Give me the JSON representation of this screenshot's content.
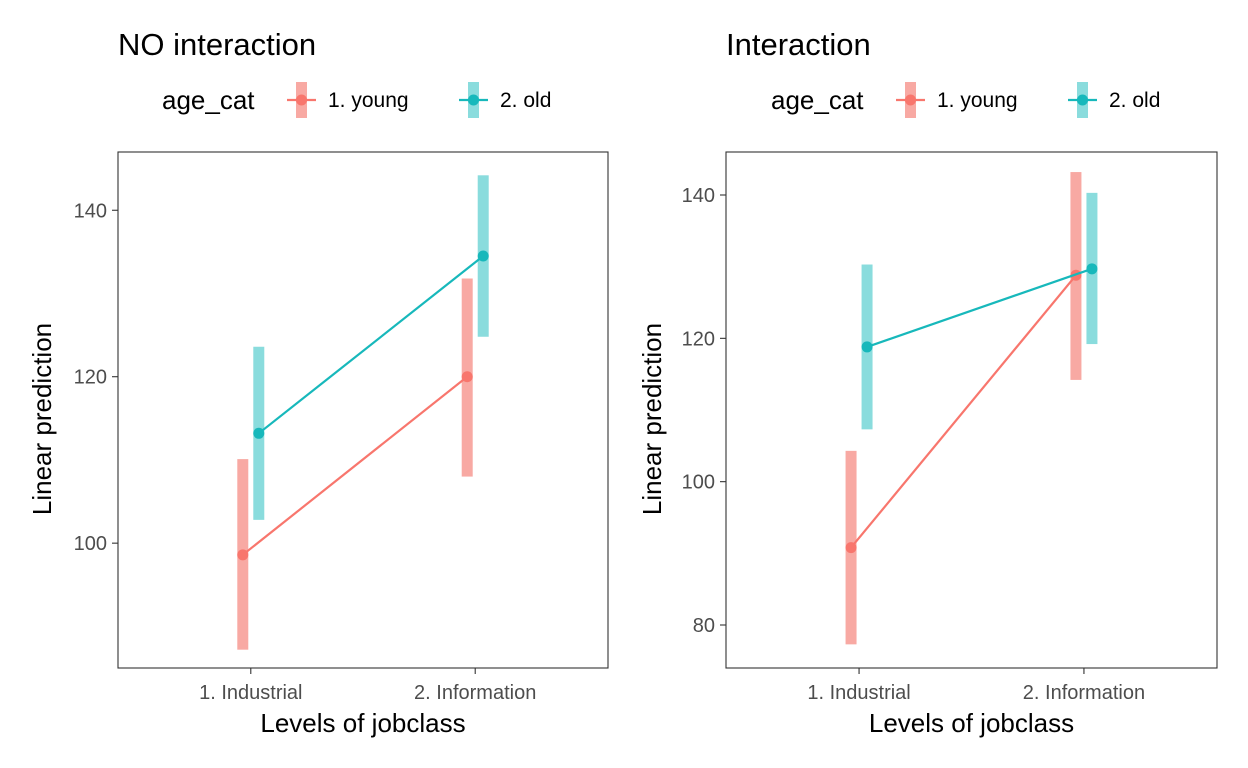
{
  "chart_data": [
    {
      "type": "line",
      "title": "NO interaction",
      "xlabel": "Levels of jobclass",
      "ylabel": "Linear prediction",
      "categories": [
        "1. Industrial",
        "2. Information"
      ],
      "ylim": [
        85,
        147
      ],
      "yticks": [
        100,
        120,
        140
      ],
      "grid": false,
      "legend": {
        "title": "age_cat",
        "position": "top"
      },
      "series": [
        {
          "name": "1. young",
          "color": "#F8766D",
          "ribbon_color": "#F8A9A3",
          "values": [
            98.6,
            120.0
          ],
          "lower": [
            87.2,
            108.0
          ],
          "upper": [
            110.1,
            131.8
          ]
        },
        {
          "name": "2. old",
          "color": "#17B8BB",
          "ribbon_color": "#8ADCDD",
          "values": [
            113.2,
            134.5
          ],
          "lower": [
            102.8,
            124.8
          ],
          "upper": [
            123.6,
            144.2
          ]
        }
      ]
    },
    {
      "type": "line",
      "title": "Interaction",
      "xlabel": "Levels of jobclass",
      "ylabel": "Linear prediction",
      "categories": [
        "1. Industrial",
        "2. Information"
      ],
      "ylim": [
        74,
        146
      ],
      "yticks": [
        80,
        100,
        120,
        140
      ],
      "grid": false,
      "legend": {
        "title": "age_cat",
        "position": "top"
      },
      "series": [
        {
          "name": "1. young",
          "color": "#F8766D",
          "ribbon_color": "#F8A9A3",
          "values": [
            90.8,
            128.8
          ],
          "lower": [
            77.3,
            114.2
          ],
          "upper": [
            104.3,
            143.2
          ]
        },
        {
          "name": "2. old",
          "color": "#17B8BB",
          "ribbon_color": "#8ADCDD",
          "values": [
            118.8,
            129.7
          ],
          "lower": [
            107.3,
            119.2
          ],
          "upper": [
            130.3,
            140.3
          ]
        }
      ]
    }
  ]
}
